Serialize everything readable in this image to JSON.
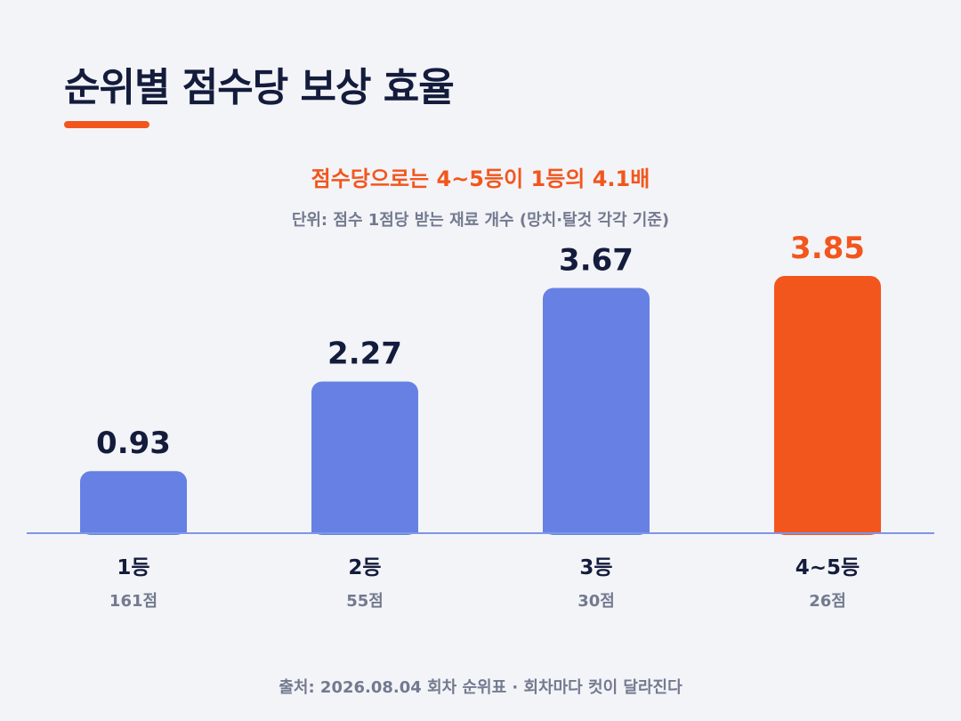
{
  "title": "순위별 점수당 보상 효율",
  "headline": "점수당으로는 4~5등이 1등의 4.1배",
  "unit_note": "단위: 점수 1점당 받는 재료 개수 (망치·탈것 각각 기준)",
  "source": "출처: 2026.08.04 회차 순위표 · 회차마다 컷이 달라진다",
  "colors": {
    "accent": "#f2561d",
    "bar": "#6681e3",
    "baseline": "#7f95e6",
    "title": "#141c3c",
    "muted": "#737a8f"
  },
  "chart_data": {
    "type": "bar",
    "categories": [
      "1등",
      "2등",
      "3등",
      "4~5등"
    ],
    "sub_labels": [
      "161점",
      "55점",
      "30점",
      "26점"
    ],
    "values": [
      0.93,
      2.27,
      3.67,
      3.85
    ],
    "value_labels": [
      "0.93",
      "2.27",
      "3.67",
      "3.85"
    ],
    "highlight_index": 3,
    "ylim": [
      0,
      4.3
    ],
    "grid": false,
    "legend": "none"
  }
}
